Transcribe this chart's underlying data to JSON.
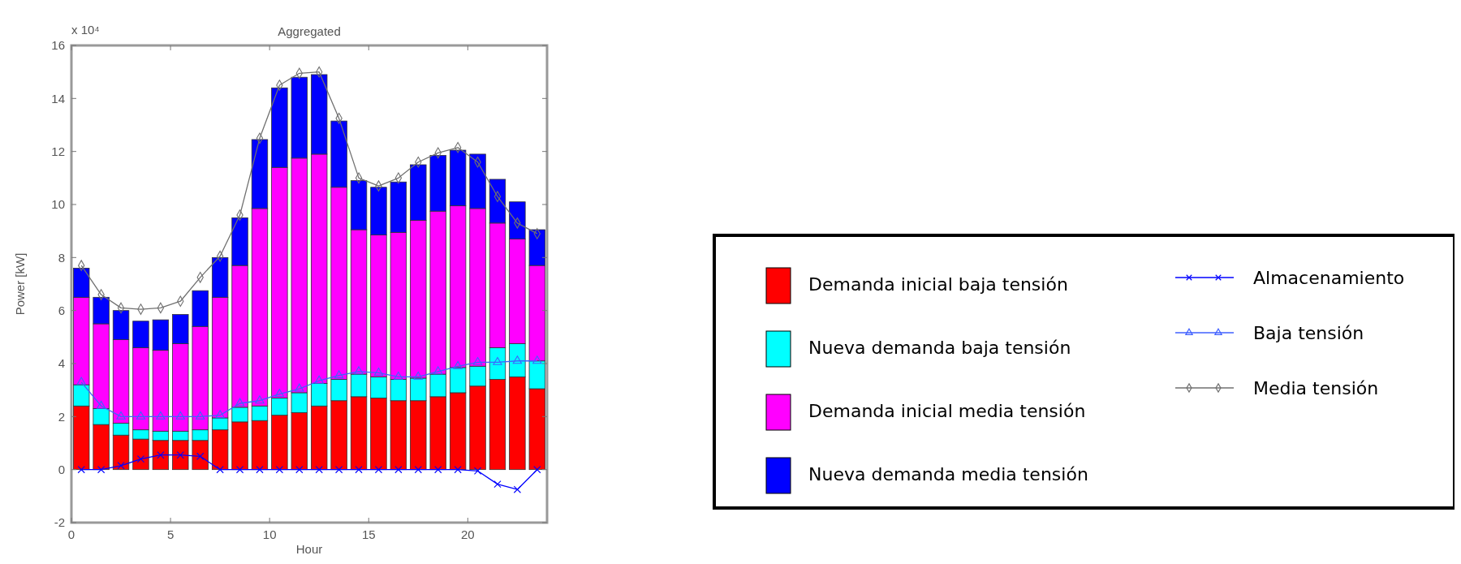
{
  "chart_data": {
    "type": "bar",
    "title": "Aggregated",
    "xlabel": "Hour",
    "ylabel": "Power [kW]",
    "annotations": [
      "x 10⁴"
    ],
    "stacked": true,
    "grid": false,
    "legend": "right",
    "x": [
      0.5,
      1.5,
      2.5,
      3.5,
      4.5,
      5.5,
      6.5,
      7.5,
      8.5,
      9.5,
      10.5,
      11.5,
      12.5,
      13.5,
      14.5,
      15.5,
      16.5,
      17.5,
      18.5,
      19.5,
      20.5,
      21.5,
      22.5,
      23.5
    ],
    "xlim": [
      0,
      24
    ],
    "xticks": [
      0,
      5,
      10,
      15,
      20
    ],
    "ylim": [
      -2,
      16
    ],
    "yticks": [
      -2,
      0,
      2,
      4,
      6,
      8,
      10,
      12,
      14,
      16
    ],
    "series": [
      {
        "name": "Demanda inicial baja tensión",
        "color": "#ff0000",
        "values": [
          2.4,
          1.7,
          1.3,
          1.15,
          1.1,
          1.1,
          1.1,
          1.5,
          1.8,
          1.85,
          2.05,
          2.15,
          2.4,
          2.6,
          2.75,
          2.7,
          2.6,
          2.6,
          2.75,
          2.9,
          3.15,
          3.4,
          3.5,
          3.05
        ]
      },
      {
        "name": "Nueva demanda baja tensión",
        "color": "#00ffff",
        "values": [
          0.8,
          0.6,
          0.45,
          0.35,
          0.35,
          0.35,
          0.4,
          0.45,
          0.55,
          0.55,
          0.65,
          0.75,
          0.85,
          0.8,
          0.85,
          0.8,
          0.8,
          0.85,
          0.85,
          0.95,
          0.75,
          1.2,
          1.25,
          1.05
        ]
      },
      {
        "name": "Demanda inicial media tensión",
        "color": "#ff00ff",
        "values": [
          3.3,
          3.2,
          3.15,
          3.1,
          3.05,
          3.3,
          3.9,
          4.55,
          5.35,
          7.45,
          8.7,
          8.85,
          8.65,
          7.25,
          5.45,
          5.35,
          5.55,
          5.95,
          6.15,
          6.1,
          5.95,
          4.7,
          3.95,
          3.6
        ]
      },
      {
        "name": "Nueva demanda media tensión",
        "color": "#0000ff",
        "values": [
          1.1,
          1.0,
          1.1,
          1.0,
          1.15,
          1.1,
          1.35,
          1.5,
          1.8,
          2.6,
          3.0,
          3.05,
          3.0,
          2.5,
          1.85,
          1.8,
          1.9,
          2.1,
          2.1,
          2.1,
          2.05,
          1.65,
          1.4,
          1.35
        ]
      },
      {
        "name": "Almacenamiento",
        "type": "line",
        "marker": "cross",
        "color": "#0000ff",
        "values": [
          0,
          0,
          0.15,
          0.4,
          0.55,
          0.55,
          0.5,
          0,
          0,
          0,
          0,
          0,
          0,
          0,
          0,
          0,
          0,
          0,
          0,
          0,
          -0.05,
          -0.55,
          -0.75,
          0
        ]
      },
      {
        "name": "Baja tensión",
        "type": "line",
        "marker": "triangle",
        "color": "#4060ff",
        "values": [
          3.3,
          2.4,
          2.0,
          2.0,
          2.0,
          2.0,
          2.0,
          2.05,
          2.5,
          2.6,
          2.85,
          3.05,
          3.35,
          3.55,
          3.7,
          3.65,
          3.5,
          3.5,
          3.7,
          3.9,
          4.05,
          4.05,
          4.1,
          4.1
        ]
      },
      {
        "name": "Media tensión",
        "type": "line",
        "marker": "diamond",
        "color": "#707070",
        "values": [
          7.7,
          6.6,
          6.1,
          6.05,
          6.1,
          6.35,
          7.25,
          8.05,
          9.6,
          12.5,
          14.5,
          14.95,
          15.0,
          13.25,
          11.0,
          10.7,
          11.0,
          11.6,
          11.95,
          12.15,
          11.6,
          10.3,
          9.3,
          8.9
        ]
      }
    ]
  }
}
